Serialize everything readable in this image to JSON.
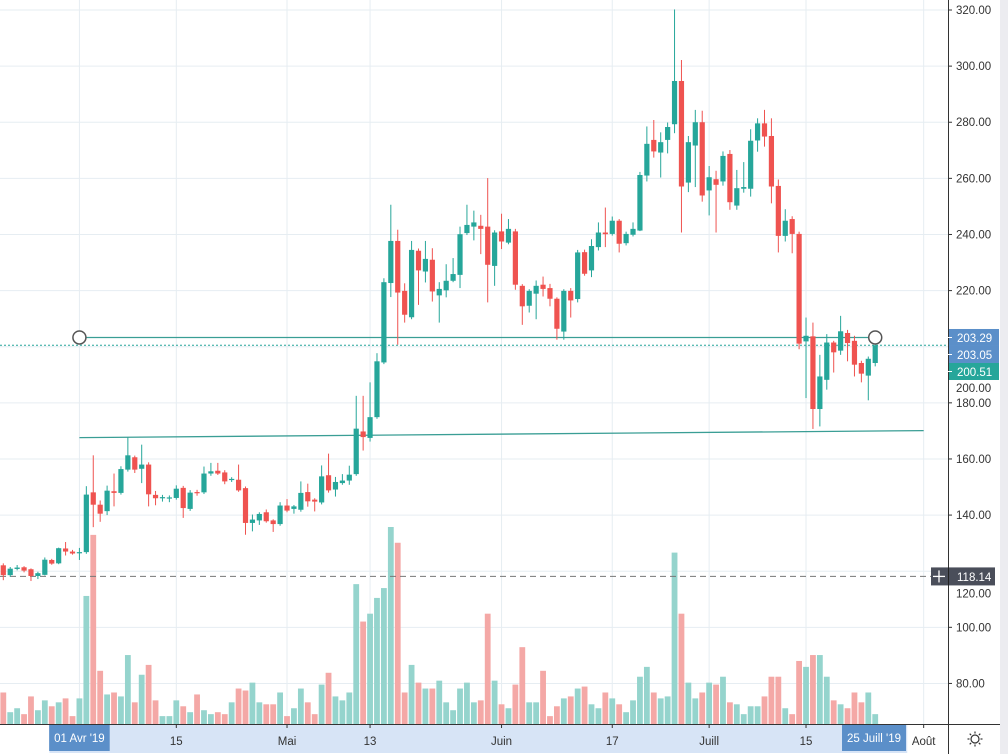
{
  "chart_data": {
    "type": "candlestick",
    "start_date": "2019-03-21",
    "interval": "1D",
    "ylim": [
      68,
      323
    ],
    "price_ticks": [
      "320.00",
      "300.00",
      "280.00",
      "260.00",
      "240.00",
      "220.00",
      "200.00",
      "180.00",
      "160.00",
      "140.00",
      "120.00",
      "100.00",
      "80.00"
    ],
    "price_tick_values": [
      320,
      300,
      280,
      260,
      240,
      220,
      200,
      180,
      160,
      140,
      120,
      100,
      80
    ],
    "time_ticks": [
      {
        "label": "01 Avr '19",
        "date": "2019-04-01",
        "highlight": true
      },
      {
        "label": "15",
        "date": "2019-04-15"
      },
      {
        "label": "Mai",
        "date": "2019-05-01"
      },
      {
        "label": "13",
        "date": "2019-05-13"
      },
      {
        "label": "Juin",
        "date": "2019-06-01"
      },
      {
        "label": "17",
        "date": "2019-06-17"
      },
      {
        "label": "Juill",
        "date": "2019-07-01"
      },
      {
        "label": "15",
        "date": "2019-07-15"
      },
      {
        "label": "25 Juill '19",
        "date": "2019-07-25",
        "highlight": true
      },
      {
        "label": "Août",
        "date": "2019-08-01"
      }
    ],
    "ohlc_columns": [
      "open",
      "high",
      "low",
      "close"
    ],
    "ohlc": [
      [
        122.1,
        122.8,
        116.8,
        118.6
      ],
      [
        118.6,
        121.5,
        118.0,
        120.9
      ],
      [
        120.8,
        122.2,
        120.3,
        121.3
      ],
      [
        121.4,
        121.8,
        119.6,
        120.2
      ],
      [
        120.7,
        121.0,
        116.5,
        118.3
      ],
      [
        118.3,
        119.8,
        117.2,
        119.3
      ],
      [
        118.7,
        124.9,
        118.5,
        124.1
      ],
      [
        124.0,
        124.4,
        122.3,
        122.7
      ],
      [
        122.8,
        128.4,
        122.5,
        128.2
      ],
      [
        128.1,
        130.4,
        125.6,
        127.0
      ],
      [
        127.0,
        127.6,
        125.9,
        126.3
      ],
      [
        126.5,
        128.3,
        124.0,
        126.8
      ],
      [
        126.8,
        150.3,
        126.2,
        147.3
      ],
      [
        148.1,
        161.3,
        135.7,
        143.7
      ],
      [
        143.7,
        145.2,
        137.6,
        140.5
      ],
      [
        141.4,
        150.5,
        140.0,
        148.7
      ],
      [
        148.5,
        154.8,
        143.1,
        147.9
      ],
      [
        147.9,
        157.4,
        147.3,
        156.4
      ],
      [
        156.2,
        167.7,
        155.5,
        161.3
      ],
      [
        160.6,
        161.2,
        155.0,
        156.2
      ],
      [
        156.5,
        165.1,
        151.4,
        158.0
      ],
      [
        158.0,
        158.8,
        143.1,
        147.4
      ],
      [
        147.2,
        148.6,
        143.5,
        146.0
      ],
      [
        146.0,
        147.2,
        144.8,
        146.4
      ],
      [
        146.0,
        147.0,
        144.6,
        146.3
      ],
      [
        146.1,
        150.6,
        145.5,
        149.4
      ],
      [
        149.7,
        150.4,
        139.0,
        142.5
      ],
      [
        142.2,
        148.9,
        141.5,
        148.0
      ],
      [
        148.2,
        149.0,
        146.9,
        147.9
      ],
      [
        148.1,
        157.3,
        147.5,
        154.8
      ],
      [
        154.8,
        158.6,
        154.0,
        155.6
      ],
      [
        155.8,
        158.6,
        154.3,
        154.8
      ],
      [
        155.2,
        156.0,
        151.0,
        152.0
      ],
      [
        152.6,
        153.5,
        151.8,
        152.9
      ],
      [
        152.6,
        158.0,
        148.3,
        148.8
      ],
      [
        149.6,
        150.2,
        133.0,
        137.2
      ],
      [
        137.2,
        140.2,
        134.2,
        138.4
      ],
      [
        138.1,
        141.0,
        136.5,
        140.4
      ],
      [
        141.0,
        142.0,
        137.3,
        137.8
      ],
      [
        138.1,
        138.5,
        134.0,
        136.8
      ],
      [
        136.8,
        144.6,
        136.2,
        143.4
      ],
      [
        143.4,
        145.7,
        141.0,
        141.6
      ],
      [
        142.2,
        143.6,
        140.5,
        143.1
      ],
      [
        141.9,
        152.0,
        141.2,
        147.9
      ],
      [
        148.2,
        151.2,
        143.0,
        144.9
      ],
      [
        145.5,
        146.0,
        141.3,
        144.8
      ],
      [
        144.5,
        157.7,
        143.8,
        153.8
      ],
      [
        154.2,
        161.9,
        148.0,
        148.8
      ],
      [
        149.1,
        153.6,
        146.6,
        151.8
      ],
      [
        151.4,
        154.6,
        150.8,
        152.3
      ],
      [
        152.3,
        157.6,
        150.8,
        154.4
      ],
      [
        154.6,
        182.5,
        154.0,
        170.8
      ],
      [
        169.8,
        182.5,
        163.0,
        167.8
      ],
      [
        167.5,
        187.3,
        166.2,
        174.9
      ],
      [
        174.9,
        197.7,
        174.3,
        194.8
      ],
      [
        194.4,
        224.4,
        193.8,
        223.0
      ],
      [
        222.7,
        250.6,
        217.7,
        237.7
      ],
      [
        237.7,
        241.7,
        200.7,
        219.3
      ],
      [
        219.9,
        222.6,
        208.6,
        211.4
      ],
      [
        210.5,
        237.7,
        209.8,
        234.5
      ],
      [
        234.2,
        235.0,
        214.9,
        227.2
      ],
      [
        226.8,
        237.7,
        222.9,
        231.3
      ],
      [
        231.0,
        235.1,
        216.1,
        219.7
      ],
      [
        218.3,
        223.0,
        208.6,
        220.6
      ],
      [
        220.1,
        229.4,
        217.6,
        223.5
      ],
      [
        223.5,
        231.6,
        223.0,
        225.9
      ],
      [
        225.6,
        242.8,
        220.9,
        240.1
      ],
      [
        240.5,
        250.6,
        239.8,
        243.4
      ],
      [
        242.8,
        248.5,
        237.9,
        244.3
      ],
      [
        243.1,
        247.0,
        233.0,
        242.0
      ],
      [
        242.8,
        260.1,
        215.8,
        229.2
      ],
      [
        228.8,
        241.5,
        221.7,
        240.7
      ],
      [
        241.1,
        247.4,
        234.8,
        237.5
      ],
      [
        237.1,
        245.5,
        236.5,
        242.0
      ],
      [
        241.1,
        242.0,
        220.3,
        222.1
      ],
      [
        221.7,
        222.3,
        207.8,
        214.4
      ],
      [
        214.6,
        220.5,
        212.2,
        219.9
      ],
      [
        218.9,
        223.6,
        209.8,
        221.7
      ],
      [
        222.1,
        225.0,
        217.9,
        220.6
      ],
      [
        220.9,
        222.4,
        214.4,
        217.1
      ],
      [
        217.1,
        217.6,
        202.5,
        206.4
      ],
      [
        205.4,
        220.5,
        202.5,
        219.9
      ],
      [
        219.9,
        220.9,
        210.4,
        216.5
      ],
      [
        217.0,
        234.5,
        215.8,
        233.6
      ],
      [
        233.7,
        234.6,
        225.3,
        226.0
      ],
      [
        227.2,
        238.3,
        224.8,
        235.9
      ],
      [
        235.5,
        244.3,
        234.3,
        240.7
      ],
      [
        240.7,
        249.6,
        235.5,
        240.1
      ],
      [
        240.2,
        246.4,
        239.6,
        244.9
      ],
      [
        244.9,
        245.5,
        233.6,
        236.7
      ],
      [
        236.9,
        241.0,
        236.1,
        240.2
      ],
      [
        239.9,
        244.3,
        239.3,
        242.0
      ],
      [
        241.4,
        262.3,
        241.2,
        261.2
      ],
      [
        261.0,
        278.5,
        258.9,
        272.3
      ],
      [
        273.7,
        280.8,
        267.4,
        269.6
      ],
      [
        269.2,
        276.4,
        260.3,
        272.9
      ],
      [
        273.7,
        279.9,
        268.9,
        278.3
      ],
      [
        279.3,
        320.2,
        276.1,
        294.7
      ],
      [
        294.7,
        302.2,
        240.7,
        257.1
      ],
      [
        258.5,
        275.1,
        255.1,
        272.9
      ],
      [
        271.7,
        284.4,
        256.9,
        280.0
      ],
      [
        280.0,
        284.1,
        251.7,
        253.9
      ],
      [
        255.7,
        264.4,
        246.8,
        260.4
      ],
      [
        259.7,
        262.7,
        240.7,
        257.7
      ],
      [
        258.9,
        269.6,
        257.4,
        268.0
      ],
      [
        268.7,
        270.1,
        248.8,
        251.5
      ],
      [
        250.3,
        263.0,
        248.8,
        256.5
      ],
      [
        256.3,
        265.8,
        254.9,
        256.9
      ],
      [
        256.3,
        277.5,
        253.5,
        273.4
      ],
      [
        273.5,
        281.4,
        269.5,
        279.6
      ],
      [
        279.6,
        284.4,
        271.3,
        274.9
      ],
      [
        275.1,
        281.4,
        251.1,
        257.1
      ],
      [
        257.3,
        259.6,
        233.6,
        239.5
      ],
      [
        239.5,
        249.0,
        237.5,
        244.9
      ],
      [
        245.5,
        246.5,
        233.3,
        240.2
      ],
      [
        240.2,
        241.0,
        199.1,
        201.1
      ],
      [
        201.9,
        210.4,
        181.7,
        203.9
      ],
      [
        203.7,
        208.6,
        170.7,
        177.8
      ],
      [
        177.8,
        197.1,
        171.6,
        189.4
      ],
      [
        188.2,
        204.5,
        184.7,
        201.5
      ],
      [
        201.5,
        202.1,
        190.8,
        198.0
      ],
      [
        198.6,
        211.0,
        197.1,
        205.5
      ],
      [
        204.9,
        206.0,
        194.8,
        201.3
      ],
      [
        202.1,
        203.9,
        189.4,
        193.6
      ],
      [
        194.2,
        195.0,
        187.3,
        190.4
      ],
      [
        189.7,
        196.5,
        180.9,
        195.7
      ],
      [
        194.2,
        203.29,
        193.0,
        200.51
      ]
    ],
    "volume_relative": [
      16,
      6,
      8,
      5,
      14,
      7,
      12,
      9,
      11,
      13,
      4,
      13,
      65,
      96,
      27,
      15,
      16,
      14,
      35,
      11,
      25,
      30,
      12,
      4,
      4,
      12,
      9,
      6,
      15,
      7,
      5,
      6,
      5,
      11,
      18,
      17,
      21,
      11,
      10,
      10,
      16,
      4,
      8,
      18,
      11,
      5,
      20,
      26,
      14,
      12,
      16,
      71,
      52,
      56,
      64,
      69,
      100,
      92,
      16,
      30,
      21,
      18,
      18,
      22,
      11,
      7,
      18,
      21,
      11,
      12,
      56,
      22,
      10,
      8,
      20,
      39,
      11,
      11,
      27,
      4,
      9,
      13,
      14,
      18,
      19,
      10,
      8,
      16,
      13,
      10,
      6,
      12,
      24,
      29,
      16,
      13,
      14,
      87,
      56,
      21,
      13,
      16,
      21,
      20,
      24,
      11,
      10,
      5,
      9,
      9,
      14,
      24,
      24,
      8,
      5,
      32,
      29,
      35,
      35,
      24,
      12,
      10,
      8,
      16,
      11,
      16,
      5
    ],
    "horizontal_line": {
      "value": 203.29,
      "from": "2019-04-01",
      "to": "2019-07-25",
      "label": "203.29"
    },
    "trend_line": {
      "from": {
        "date": "2019-04-01",
        "value": 167.6
      },
      "to": {
        "date": "2019-08-01",
        "value": 170.1
      }
    },
    "price_labels": {
      "line_label": "203.29",
      "secondary_label": "203.05",
      "secondary_value": 203.05,
      "last_price_label": "200.51",
      "last_price": 200.51
    },
    "crosshair": {
      "value": 118.14,
      "label": "118.14"
    },
    "grid": true,
    "colors": {
      "up": "#26a69a",
      "down": "#ef5350",
      "up_volume": "#95d4cd",
      "down_volume": "#f4a8a6",
      "line": "#3a9e95",
      "label_blue": "#5b8fc9",
      "label_green": "#26a69a",
      "crosshair_label": "#4a4e5a",
      "grid": "#e6edf2",
      "range_highlight": "#d7e4f6"
    }
  },
  "ui": {
    "settings_icon": "sun-gear-icon",
    "crosshair_icon": "plus-icon"
  }
}
